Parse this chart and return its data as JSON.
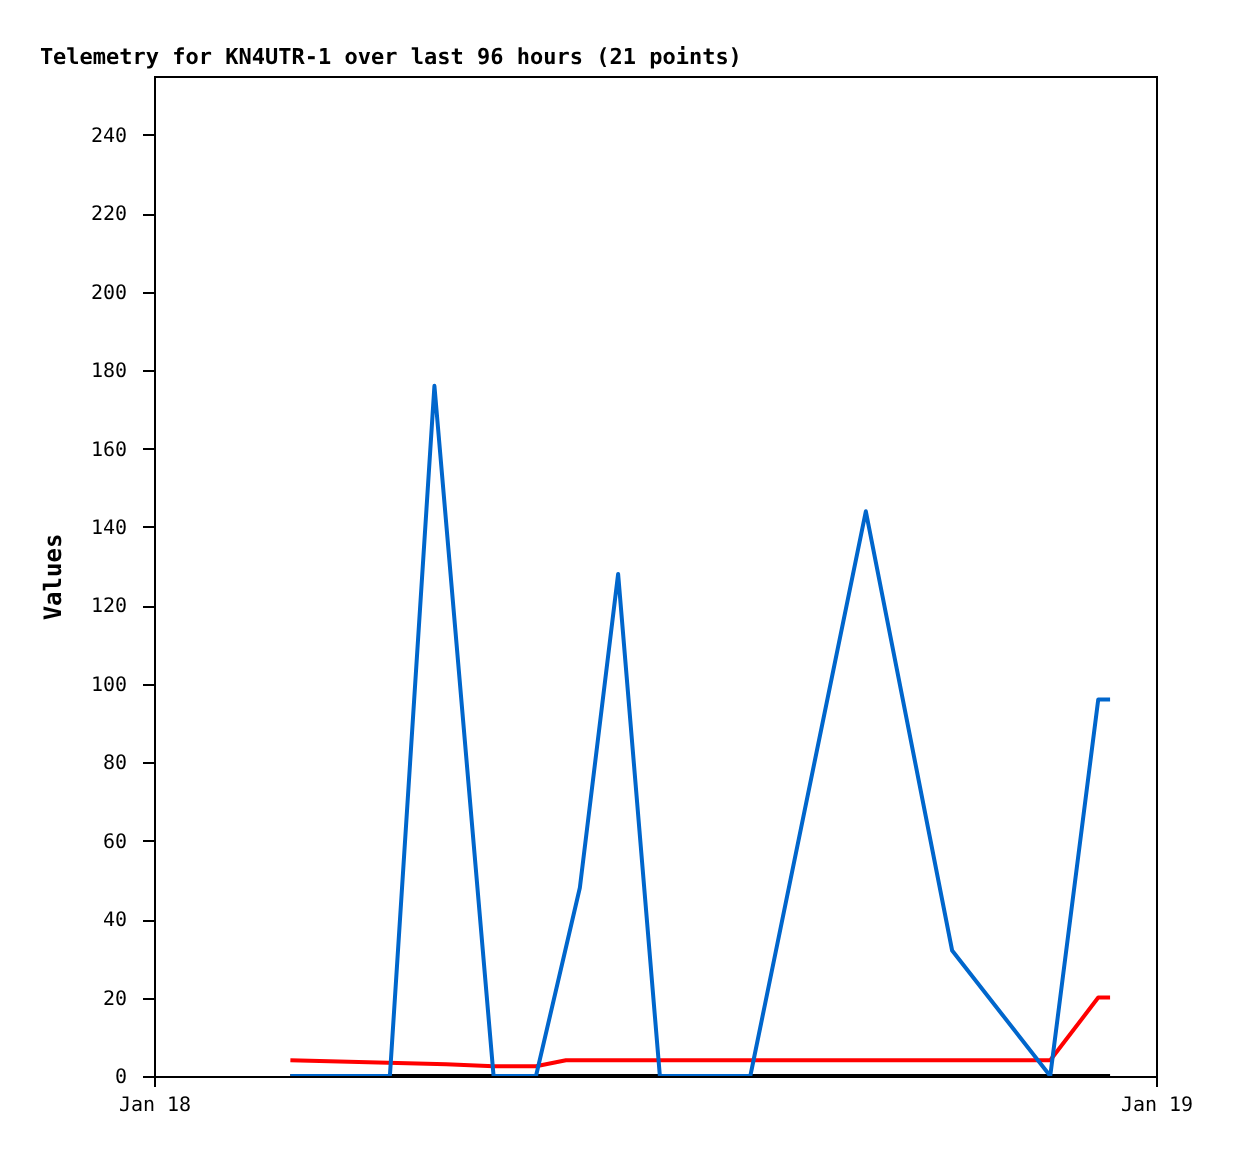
{
  "chart_data": {
    "type": "line",
    "title": "Telemetry for KN4UTR-1 over last 96 hours (21 points)",
    "ylabel": "Values",
    "xlim": [
      "--01-18",
      "--01-19"
    ],
    "xticks": [
      {
        "value": "--01-18",
        "label": "Jan 18"
      },
      {
        "value": "--01-19",
        "label": "Jan 19"
      }
    ],
    "ylim": [
      0,
      255
    ],
    "yticks": [
      0,
      20,
      40,
      60,
      80,
      100,
      120,
      140,
      160,
      180,
      200,
      220,
      240
    ],
    "grid": false,
    "series": [
      {
        "color": "#000000",
        "x": [
          "--01-18T03:16",
          "--01-18T22:54"
        ],
        "values": [
          0,
          0
        ]
      },
      {
        "color": "#ff0000",
        "x": [
          "--01-18T03:16",
          "--01-18T07:00",
          "--01-18T08:08",
          "--01-18T09:09",
          "--01-18T09:52",
          "--01-18T21:28",
          "--01-18T22:37",
          "--01-18T22:54"
        ],
        "values": [
          4,
          3,
          2.5,
          2.5,
          4,
          4,
          20,
          20
        ]
      },
      {
        "color": "#0066cc",
        "x": [
          "--01-18T03:16",
          "--01-18T05:39",
          "--01-18T06:43",
          "--01-18T08:08",
          "--01-18T09:09",
          "--01-18T10:12",
          "--01-18T11:07",
          "--01-18T12:07",
          "--01-18T14:17",
          "--01-18T17:03",
          "--01-18T19:07",
          "--01-18T21:28",
          "--01-18T22:37",
          "--01-18T22:54"
        ],
        "values": [
          0,
          0,
          176,
          0,
          0,
          48,
          128,
          0,
          0,
          144,
          32,
          0,
          96,
          96
        ]
      }
    ]
  }
}
